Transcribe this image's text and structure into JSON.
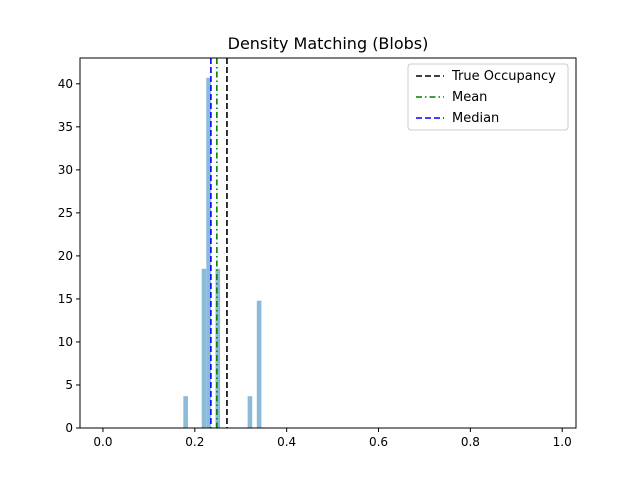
{
  "chart_data": {
    "type": "bar",
    "title": "Density Matching (Blobs)",
    "xlabel": "",
    "ylabel": "",
    "xlim": [
      -0.05,
      1.03
    ],
    "ylim": [
      0,
      43
    ],
    "xticks": [
      0.0,
      0.2,
      0.4,
      0.6,
      0.8,
      1.0
    ],
    "xtick_labels": [
      "0.0",
      "0.2",
      "0.4",
      "0.6",
      "0.8",
      "1.0"
    ],
    "yticks": [
      0,
      5,
      10,
      15,
      20,
      25,
      30,
      35,
      40
    ],
    "ytick_labels": [
      "0",
      "5",
      "10",
      "15",
      "20",
      "25",
      "30",
      "35",
      "40"
    ],
    "grid": false,
    "bin_width": 0.01,
    "bars": [
      {
        "x": 0.18,
        "value": 3.7
      },
      {
        "x": 0.22,
        "value": 18.5
      },
      {
        "x": 0.23,
        "value": 40.7
      },
      {
        "x": 0.25,
        "value": 18.5
      },
      {
        "x": 0.32,
        "value": 3.7
      },
      {
        "x": 0.34,
        "value": 14.8
      }
    ],
    "bar_color": "#8bbbd9",
    "reference_lines": [
      {
        "name": "True Occupancy",
        "x": 0.27,
        "color": "#000000",
        "style": "dashed"
      },
      {
        "name": "Mean",
        "x": 0.248,
        "color": "#008000",
        "style": "dashdot"
      },
      {
        "name": "Median",
        "x": 0.235,
        "color": "#0000ff",
        "style": "dashed"
      }
    ],
    "legend": {
      "position": "top-right",
      "entries": [
        "True Occupancy",
        "Mean",
        "Median"
      ]
    }
  }
}
